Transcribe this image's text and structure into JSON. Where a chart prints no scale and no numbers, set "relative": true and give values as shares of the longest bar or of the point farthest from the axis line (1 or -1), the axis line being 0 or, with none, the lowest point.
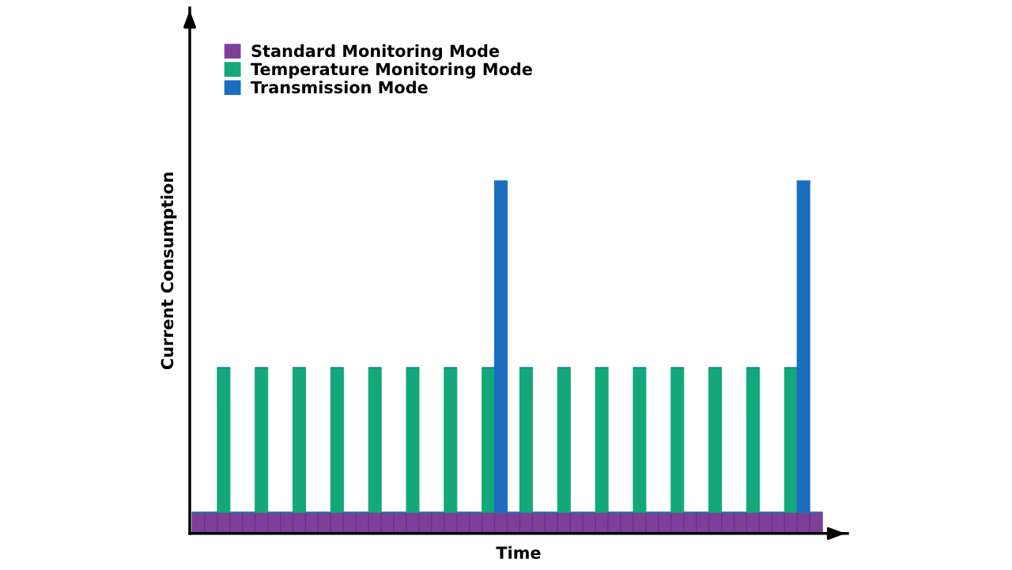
{
  "chart_data": {
    "type": "bar",
    "relative": true,
    "stacked": true,
    "xlabel": "Time",
    "ylabel": "Current Consumption",
    "legend": "top left",
    "grid": false,
    "categories": [
      null,
      null,
      null,
      null,
      null,
      null,
      null,
      null,
      null,
      null,
      null,
      null,
      null,
      null,
      null,
      null,
      null,
      null,
      null,
      null,
      null,
      null,
      null,
      null,
      null,
      null,
      null,
      null,
      null,
      null,
      null,
      null,
      null,
      null,
      null,
      null,
      null,
      null,
      null,
      null,
      null,
      null,
      null,
      null,
      null,
      null,
      null,
      null,
      null,
      null
    ],
    "series": [
      {
        "name": "Standard Monitoring Mode",
        "color": "#7e3f98",
        "values": [
          0.06,
          0.06,
          0.06,
          0.06,
          0.06,
          0.06,
          0.06,
          0.06,
          0.06,
          0.06,
          0.06,
          0.06,
          0.06,
          0.06,
          0.06,
          0.06,
          0.06,
          0.06,
          0.06,
          0.06,
          0.06,
          0.06,
          0.06,
          0.06,
          0.06,
          0.06,
          0.06,
          0.06,
          0.06,
          0.06,
          0.06,
          0.06,
          0.06,
          0.06,
          0.06,
          0.06,
          0.06,
          0.06,
          0.06,
          0.06,
          0.06,
          0.06,
          0.06,
          0.06,
          0.06,
          0.06,
          0.06,
          0.06,
          0.06,
          0.06
        ]
      },
      {
        "name": "Temperature Monitoring Mode",
        "color": "#13a87a",
        "values": [
          0,
          0,
          0.41,
          0,
          0,
          0.41,
          0,
          0,
          0.41,
          0,
          0,
          0.41,
          0,
          0,
          0.41,
          0,
          0,
          0.41,
          0,
          0,
          0.41,
          0,
          0,
          0.41,
          0,
          0,
          0.41,
          0,
          0,
          0.41,
          0,
          0,
          0.41,
          0,
          0,
          0.41,
          0,
          0,
          0.41,
          0,
          0,
          0.41,
          0,
          0,
          0.41,
          0,
          0,
          0.41,
          0,
          0
        ]
      },
      {
        "name": "Transmission Mode",
        "color": "#1a6dbf",
        "values": [
          0,
          0,
          0,
          0,
          0,
          0,
          0,
          0,
          0,
          0,
          0,
          0,
          0,
          0,
          0,
          0,
          0,
          0,
          0,
          0,
          0,
          0,
          0,
          0,
          0.94,
          0,
          0,
          0,
          0,
          0,
          0,
          0,
          0,
          0,
          0,
          0,
          0,
          0,
          0,
          0,
          0,
          0,
          0,
          0,
          0,
          0,
          0,
          0,
          0.94,
          0
        ]
      }
    ]
  }
}
